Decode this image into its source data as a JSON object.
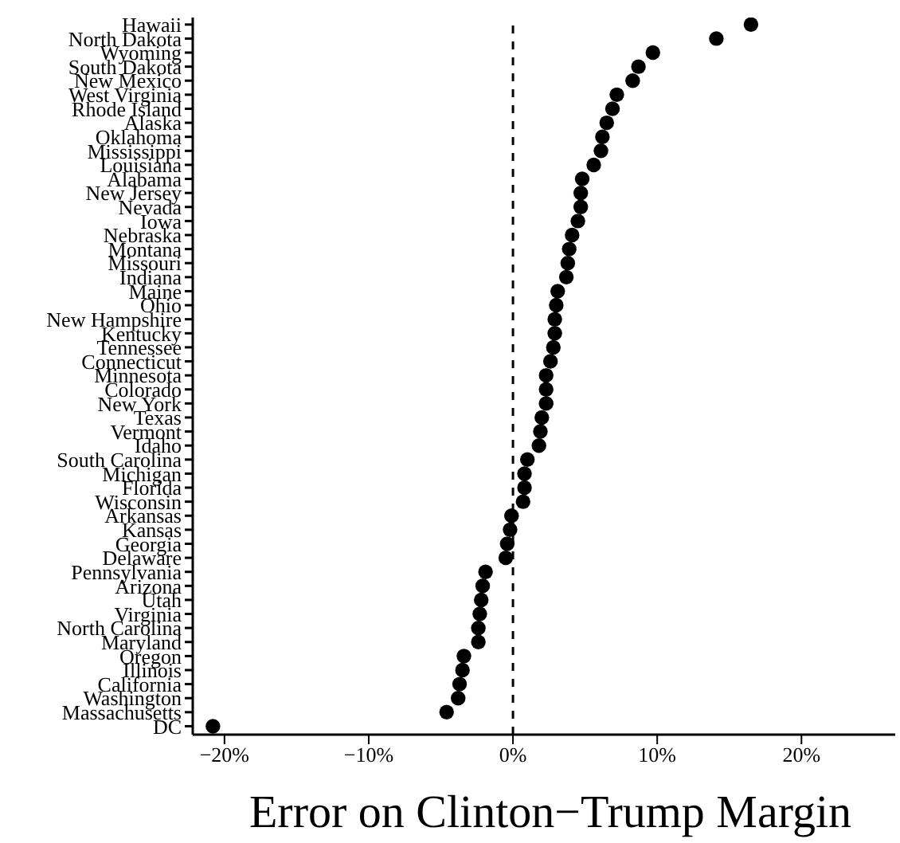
{
  "chart_data": {
    "type": "scatter",
    "xlabel": "Error on Clinton−Trump Margin",
    "categories": [
      "Hawaii",
      "North Dakota",
      "Wyoming",
      "South Dakota",
      "New Mexico",
      "West Virginia",
      "Rhode Island",
      "Alaska",
      "Oklahoma",
      "Mississippi",
      "Louisiana",
      "Alabama",
      "New Jersey",
      "Nevada",
      "Iowa",
      "Nebraska",
      "Montana",
      "Missouri",
      "Indiana",
      "Maine",
      "Ohio",
      "New Hampshire",
      "Kentucky",
      "Tennessee",
      "Connecticut",
      "Minnesota",
      "Colorado",
      "New York",
      "Texas",
      "Vermont",
      "Idaho",
      "South Carolina",
      "Michigan",
      "Florida",
      "Wisconsin",
      "Arkansas",
      "Kansas",
      "Georgia",
      "Delaware",
      "Pennsylvania",
      "Arizona",
      "Utah",
      "Virginia",
      "North Carolina",
      "Maryland",
      "Oregon",
      "Illinois",
      "California",
      "Washington",
      "Massachusetts",
      "DC"
    ],
    "orientation": "horizontal",
    "series": [
      {
        "color": "#000000",
        "values": [
          16.5,
          14.1,
          9.7,
          8.7,
          8.3,
          7.2,
          6.9,
          6.5,
          6.2,
          6.1,
          5.6,
          4.8,
          4.7,
          4.7,
          4.5,
          4.1,
          3.9,
          3.8,
          3.7,
          3.1,
          3.0,
          2.9,
          2.9,
          2.8,
          2.6,
          2.3,
          2.3,
          2.3,
          2.0,
          1.9,
          1.8,
          1.0,
          0.8,
          0.8,
          0.7,
          -0.1,
          -0.2,
          -0.4,
          -0.5,
          -1.9,
          -2.1,
          -2.2,
          -2.3,
          -2.4,
          -2.4,
          -3.4,
          -3.5,
          -3.7,
          -3.8,
          -4.6,
          -20.8
        ]
      }
    ],
    "xlim": [
      -22.2,
      26.5
    ],
    "xticks": [
      {
        "value": -20,
        "label": "−20%"
      },
      {
        "value": -10,
        "label": "−10%"
      },
      {
        "value": 0,
        "label": "0%"
      },
      {
        "value": 10,
        "label": "10%"
      },
      {
        "value": 20,
        "label": "20%"
      }
    ],
    "ref_lines": [
      {
        "axis": "x",
        "value": 0,
        "line_style": "dashed",
        "color": "#000000"
      }
    ],
    "marker": "circle",
    "grid": false,
    "legend": false
  }
}
